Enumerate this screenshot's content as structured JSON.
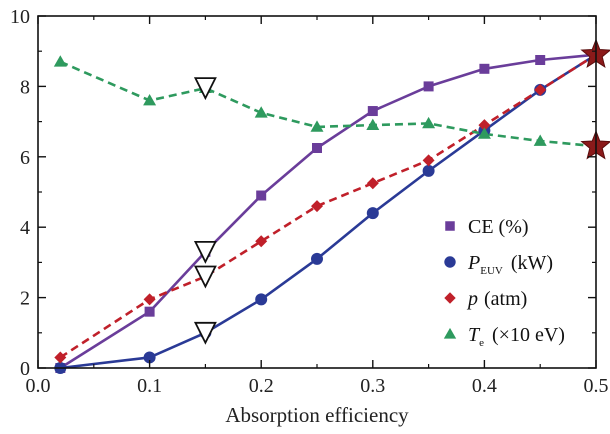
{
  "chart_data": {
    "type": "line",
    "xlabel": "Absorption efficiency",
    "ylabel": "",
    "xlim": [
      0.0,
      0.5
    ],
    "ylim": [
      0,
      10
    ],
    "xticks": [
      "0.0",
      "0.1",
      "0.2",
      "0.3",
      "0.4",
      "0.5"
    ],
    "yticks": [
      "0",
      "2",
      "4",
      "6",
      "8",
      "10"
    ],
    "grid": false,
    "legend_position": "bottom-right",
    "series": [
      {
        "key": "ce",
        "legend_main": "CE (%)",
        "legend_sub": "",
        "legend_suffix": "",
        "color": "#6a3d9a",
        "marker": "square",
        "dash": "solid",
        "x": [
          0.02,
          0.1,
          0.15,
          0.2,
          0.25,
          0.3,
          0.35,
          0.4,
          0.45,
          0.5
        ],
        "y": [
          0.0,
          1.6,
          3.3,
          4.9,
          6.25,
          7.3,
          8.0,
          8.5,
          8.75,
          8.9
        ]
      },
      {
        "key": "peuv",
        "legend_main": "P",
        "legend_sub": "EUV",
        "legend_suffix": "(kW)",
        "color": "#2a3a96",
        "marker": "circle",
        "dash": "solid",
        "x": [
          0.02,
          0.1,
          0.15,
          0.2,
          0.25,
          0.3,
          0.35,
          0.4,
          0.45,
          0.5
        ],
        "y": [
          0.0,
          0.3,
          1.0,
          1.95,
          3.1,
          4.4,
          5.6,
          6.75,
          7.9,
          8.9
        ]
      },
      {
        "key": "p",
        "legend_main": "p",
        "legend_sub": "",
        "legend_suffix": "(atm)",
        "color": "#c0202a",
        "marker": "diamond",
        "dash": "dashed",
        "x": [
          0.02,
          0.1,
          0.15,
          0.2,
          0.25,
          0.3,
          0.35,
          0.4,
          0.45,
          0.5
        ],
        "y": [
          0.3,
          1.95,
          2.6,
          3.6,
          4.6,
          5.25,
          5.9,
          6.9,
          7.9,
          8.9
        ]
      },
      {
        "key": "te",
        "legend_main": "T",
        "legend_sub": "e",
        "legend_suffix": "(×10 eV)",
        "color": "#2e9a5e",
        "marker": "triangle",
        "dash": "dashed",
        "x": [
          0.02,
          0.1,
          0.15,
          0.2,
          0.25,
          0.3,
          0.35,
          0.4,
          0.45,
          0.5
        ],
        "y": [
          8.7,
          7.6,
          7.95,
          7.25,
          6.85,
          6.9,
          6.95,
          6.65,
          6.45,
          6.3
        ]
      }
    ],
    "annotations": [
      {
        "shape": "open-triangle-down",
        "x": 0.15,
        "y": 7.95
      },
      {
        "shape": "open-triangle-down",
        "x": 0.15,
        "y": 3.3
      },
      {
        "shape": "open-triangle-down",
        "x": 0.15,
        "y": 2.6
      },
      {
        "shape": "open-triangle-down",
        "x": 0.15,
        "y": 1.0
      },
      {
        "shape": "star",
        "x": 0.5,
        "y": 8.9,
        "color": "#8b1a1a"
      },
      {
        "shape": "star",
        "x": 0.5,
        "y": 6.3,
        "color": "#8b1a1a"
      }
    ]
  }
}
